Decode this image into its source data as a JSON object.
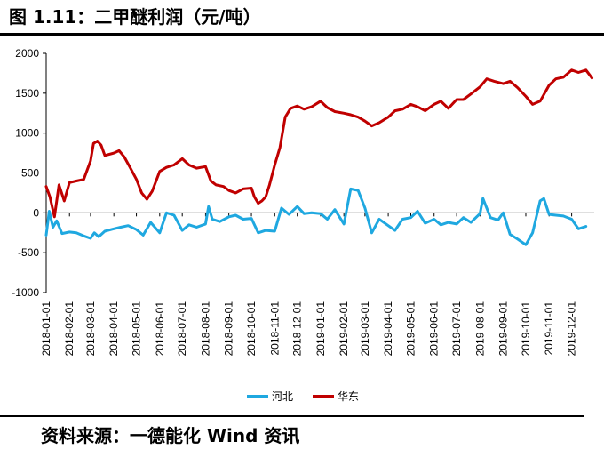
{
  "figure": {
    "title": "图 1.11：二甲醚利润（元/吨）",
    "source": "资料来源：一德能化 Wind 资讯"
  },
  "chart_data": {
    "type": "line",
    "title": "",
    "xlabel": "",
    "ylabel": "",
    "ylim": [
      -1000,
      2000
    ],
    "yticks": [
      2000,
      1500,
      1000,
      500,
      0,
      -500,
      -1000
    ],
    "xticks": [
      "2018-01-01",
      "2018-02-01",
      "2018-03-01",
      "2018-04-01",
      "2018-05-01",
      "2018-06-01",
      "2018-07-01",
      "2018-08-01",
      "2018-09-01",
      "2018-10-01",
      "2018-11-01",
      "2018-12-01",
      "2019-01-01",
      "2019-02-01",
      "2019-03-01",
      "2019-04-01",
      "2019-05-01",
      "2019-06-01",
      "2019-07-01",
      "2019-08-01",
      "2019-09-01",
      "2019-10-01",
      "2019-11-01",
      "2019-12-01"
    ],
    "grid": false,
    "legend": "bottom",
    "series": [
      {
        "name": "河北",
        "color": "#1fa8e0",
        "x": [
          "2018-01-01",
          "2018-01-05",
          "2018-01-10",
          "2018-01-15",
          "2018-01-22",
          "2018-02-01",
          "2018-02-10",
          "2018-02-20",
          "2018-03-01",
          "2018-03-06",
          "2018-03-12",
          "2018-03-20",
          "2018-04-01",
          "2018-04-10",
          "2018-04-20",
          "2018-05-01",
          "2018-05-10",
          "2018-05-20",
          "2018-06-01",
          "2018-06-10",
          "2018-06-20",
          "2018-07-01",
          "2018-07-10",
          "2018-07-20",
          "2018-08-01",
          "2018-08-05",
          "2018-08-10",
          "2018-08-20",
          "2018-09-01",
          "2018-09-10",
          "2018-09-20",
          "2018-10-01",
          "2018-10-10",
          "2018-10-20",
          "2018-11-01",
          "2018-11-10",
          "2018-11-20",
          "2018-12-01",
          "2018-12-10",
          "2018-12-20",
          "2019-01-01",
          "2019-01-10",
          "2019-01-20",
          "2019-02-01",
          "2019-02-10",
          "2019-02-20",
          "2019-03-01",
          "2019-03-10",
          "2019-03-20",
          "2019-04-01",
          "2019-04-10",
          "2019-04-20",
          "2019-05-01",
          "2019-05-10",
          "2019-05-20",
          "2019-06-01",
          "2019-06-10",
          "2019-06-20",
          "2019-07-01",
          "2019-07-10",
          "2019-07-20",
          "2019-08-01",
          "2019-08-05",
          "2019-08-15",
          "2019-08-25",
          "2019-09-01",
          "2019-09-10",
          "2019-09-20",
          "2019-10-01",
          "2019-10-10",
          "2019-10-20",
          "2019-10-25",
          "2019-11-01",
          "2019-11-10",
          "2019-11-20",
          "2019-12-01",
          "2019-12-10",
          "2019-12-20"
        ],
        "y": [
          -280,
          20,
          -180,
          -100,
          -260,
          -240,
          -250,
          -290,
          -320,
          -250,
          -300,
          -230,
          -200,
          -180,
          -160,
          -210,
          -280,
          -120,
          -250,
          0,
          -30,
          -220,
          -150,
          -180,
          -140,
          80,
          -80,
          -110,
          -50,
          -30,
          -80,
          -70,
          -250,
          -220,
          -230,
          60,
          -20,
          80,
          -10,
          0,
          -10,
          -80,
          40,
          -140,
          300,
          280,
          60,
          -250,
          -80,
          -160,
          -220,
          -80,
          -60,
          20,
          -130,
          -80,
          -150,
          -120,
          -140,
          -60,
          -120,
          -10,
          180,
          -60,
          -90,
          0,
          -270,
          -330,
          -400,
          -250,
          150,
          180,
          -20,
          -30,
          -40,
          -80,
          -200,
          -170
        ]
      },
      {
        "name": "华东",
        "color": "#c00000",
        "x": [
          "2018-01-01",
          "2018-01-06",
          "2018-01-12",
          "2018-01-18",
          "2018-01-25",
          "2018-02-01",
          "2018-02-10",
          "2018-02-20",
          "2018-03-01",
          "2018-03-05",
          "2018-03-10",
          "2018-03-15",
          "2018-03-20",
          "2018-04-01",
          "2018-04-08",
          "2018-04-15",
          "2018-04-22",
          "2018-05-01",
          "2018-05-08",
          "2018-05-15",
          "2018-05-22",
          "2018-06-01",
          "2018-06-10",
          "2018-06-20",
          "2018-07-01",
          "2018-07-10",
          "2018-07-20",
          "2018-08-01",
          "2018-08-08",
          "2018-08-15",
          "2018-08-25",
          "2018-09-01",
          "2018-09-10",
          "2018-09-20",
          "2018-10-01",
          "2018-10-05",
          "2018-10-10",
          "2018-10-15",
          "2018-10-20",
          "2018-10-25",
          "2018-11-01",
          "2018-11-08",
          "2018-11-15",
          "2018-11-22",
          "2018-12-01",
          "2018-12-10",
          "2018-12-20",
          "2019-01-01",
          "2019-01-10",
          "2019-01-20",
          "2019-02-01",
          "2019-02-10",
          "2019-02-20",
          "2019-03-01",
          "2019-03-10",
          "2019-03-20",
          "2019-04-01",
          "2019-04-10",
          "2019-04-20",
          "2019-05-01",
          "2019-05-10",
          "2019-05-20",
          "2019-06-01",
          "2019-06-10",
          "2019-06-20",
          "2019-07-01",
          "2019-07-10",
          "2019-07-20",
          "2019-08-01",
          "2019-08-10",
          "2019-08-20",
          "2019-09-01",
          "2019-09-10",
          "2019-09-20",
          "2019-10-01",
          "2019-10-10",
          "2019-10-20",
          "2019-11-01",
          "2019-11-10",
          "2019-11-20",
          "2019-12-01",
          "2019-12-10",
          "2019-12-20",
          "2019-12-28"
        ],
        "y": [
          330,
          200,
          -50,
          350,
          150,
          380,
          400,
          420,
          650,
          870,
          900,
          850,
          720,
          750,
          780,
          700,
          580,
          420,
          250,
          170,
          270,
          520,
          570,
          600,
          680,
          600,
          560,
          580,
          400,
          350,
          330,
          280,
          250,
          300,
          310,
          200,
          120,
          150,
          200,
          350,
          600,
          820,
          1200,
          1310,
          1340,
          1300,
          1330,
          1400,
          1320,
          1270,
          1250,
          1230,
          1200,
          1150,
          1090,
          1130,
          1200,
          1280,
          1300,
          1360,
          1330,
          1280,
          1360,
          1400,
          1310,
          1420,
          1420,
          1490,
          1580,
          1680,
          1650,
          1620,
          1650,
          1570,
          1460,
          1360,
          1400,
          1600,
          1680,
          1700,
          1790,
          1760,
          1790,
          1690
        ]
      }
    ]
  }
}
